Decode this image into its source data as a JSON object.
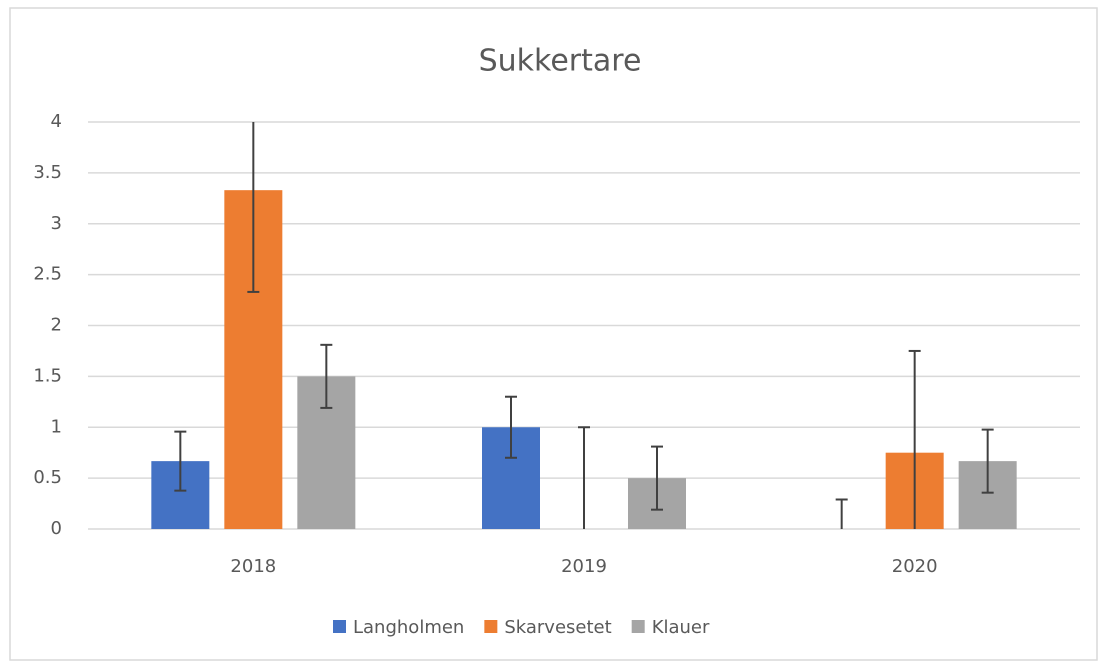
{
  "chart_data": {
    "type": "bar",
    "title": "Sukkertare",
    "categories": [
      "2018",
      "2019",
      "2020"
    ],
    "series": [
      {
        "name": "Langholmen",
        "color": "#4472c4",
        "values": [
          0.667,
          1.0,
          0
        ],
        "errors": [
          0.29,
          0.3,
          0.29
        ]
      },
      {
        "name": "Skarvesetet",
        "color": "#ed7d31",
        "values": [
          3.33,
          0,
          0.75
        ],
        "errors": [
          1.0,
          1.0,
          1.0
        ]
      },
      {
        "name": "Klauer",
        "color": "#a5a5a5",
        "values": [
          1.5,
          0.5,
          0.667
        ],
        "errors": [
          0.31,
          0.31,
          0.31
        ]
      }
    ],
    "ylim": [
      0,
      4
    ],
    "yticks": [
      0,
      0.5,
      1,
      1.5,
      2,
      2.5,
      3,
      3.5,
      4
    ],
    "grid": true,
    "legend": "bottom"
  }
}
